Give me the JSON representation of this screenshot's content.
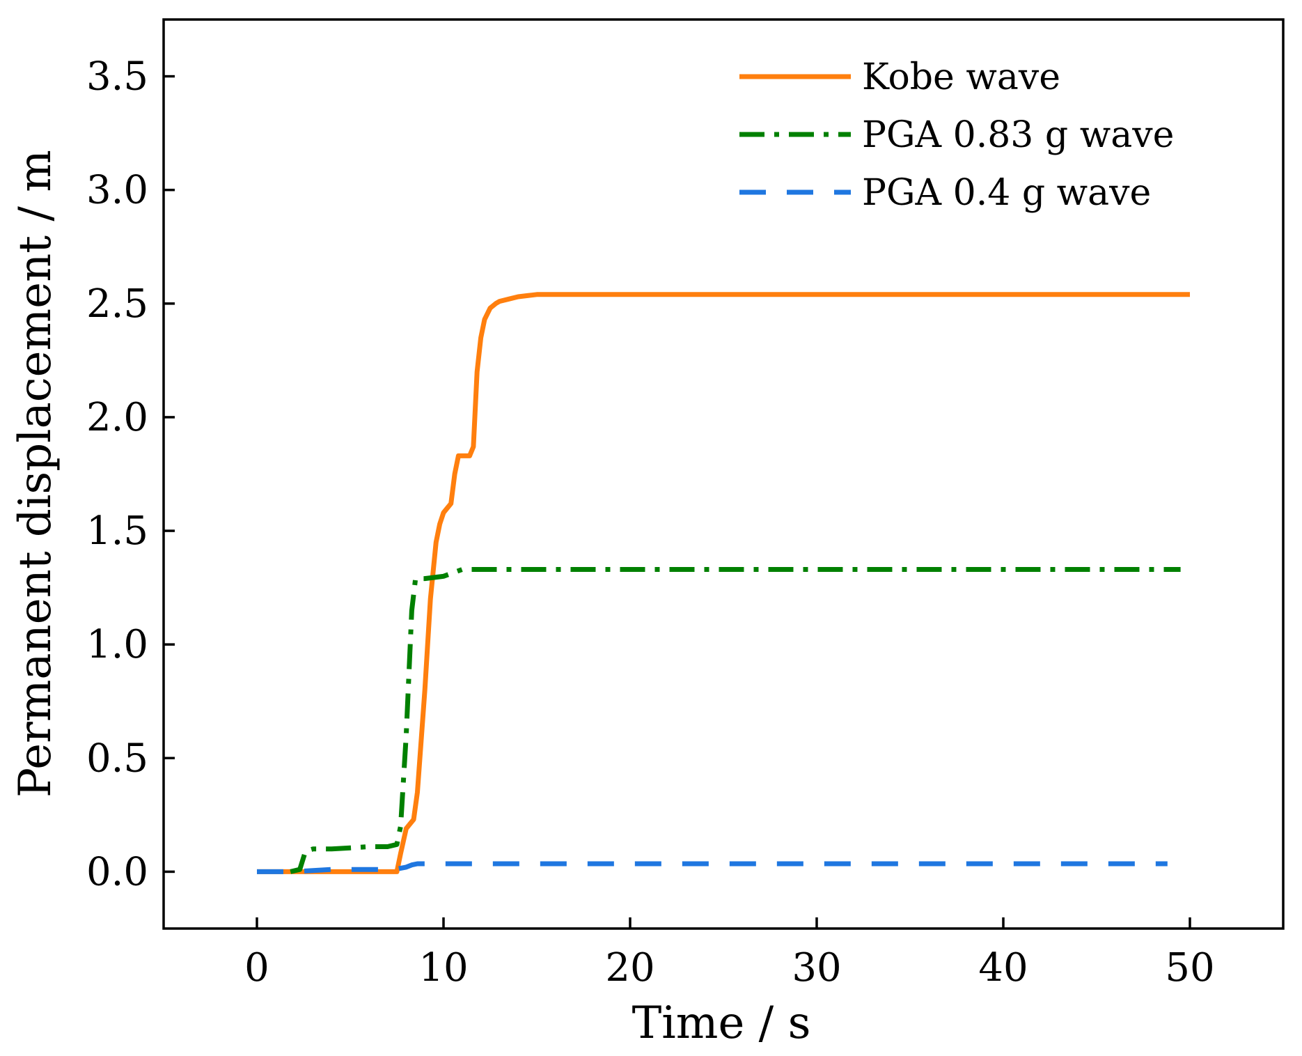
{
  "chart_data": {
    "type": "line",
    "title": "",
    "xlabel": "Time / s",
    "ylabel": "Permanent displacement / m",
    "xlim": [
      -5,
      55
    ],
    "ylim": [
      -0.25,
      3.75
    ],
    "xticks": [
      0,
      10,
      20,
      30,
      40,
      50
    ],
    "yticks": [
      0.0,
      0.5,
      1.0,
      1.5,
      2.0,
      2.5,
      3.0,
      3.5
    ],
    "xtick_labels": [
      "0",
      "10",
      "20",
      "30",
      "40",
      "50"
    ],
    "ytick_labels": [
      "0.0",
      "0.5",
      "1.0",
      "1.5",
      "2.0",
      "2.5",
      "3.0",
      "3.5"
    ],
    "grid": false,
    "legend_position": "top-right",
    "series": [
      {
        "name": "Kobe wave",
        "color": "#ff7f0e",
        "line_style": "solid",
        "x": [
          0,
          2,
          7.5,
          7.7,
          8.0,
          8.2,
          8.4,
          8.6,
          9.0,
          9.3,
          9.6,
          9.8,
          10.0,
          10.2,
          10.4,
          10.6,
          10.8,
          11.0,
          11.4,
          11.6,
          11.8,
          12.0,
          12.2,
          12.5,
          12.8,
          13.0,
          13.5,
          14.0,
          14.5,
          15.0,
          16.0,
          20.0,
          30.0,
          40.0,
          50.0
        ],
        "values": [
          0.0,
          0.0,
          0.0,
          0.08,
          0.19,
          0.21,
          0.23,
          0.35,
          0.8,
          1.2,
          1.45,
          1.53,
          1.58,
          1.6,
          1.62,
          1.75,
          1.83,
          1.83,
          1.83,
          1.87,
          2.2,
          2.35,
          2.43,
          2.48,
          2.5,
          2.51,
          2.52,
          2.53,
          2.535,
          2.54,
          2.54,
          2.54,
          2.54,
          2.54,
          2.54
        ]
      },
      {
        "name": "PGA 0.83 g wave",
        "color": "#008000",
        "line_style": "dashdot",
        "x": [
          1.8,
          2.3,
          2.6,
          3.0,
          4.0,
          5.0,
          6.0,
          7.0,
          7.5,
          7.7,
          8.0,
          8.3,
          8.5,
          8.7,
          9.0,
          10.0,
          11.0,
          12.0,
          15.0,
          20.0,
          30.0,
          40.0,
          49.5
        ],
        "values": [
          0.0,
          0.01,
          0.09,
          0.1,
          0.1,
          0.105,
          0.11,
          0.11,
          0.12,
          0.2,
          0.6,
          1.15,
          1.29,
          1.29,
          1.29,
          1.3,
          1.33,
          1.33,
          1.33,
          1.33,
          1.33,
          1.33,
          1.33
        ]
      },
      {
        "name": "PGA 0.4 g wave",
        "color": "#1f77e0",
        "line_style": "dashed",
        "x": [
          0,
          2,
          4,
          7.0,
          7.5,
          8.0,
          8.3,
          8.6,
          9.0,
          10.0,
          20.0,
          30.0,
          40.0,
          48.8
        ],
        "values": [
          0.0,
          0.0,
          0.01,
          0.01,
          0.012,
          0.02,
          0.03,
          0.035,
          0.035,
          0.035,
          0.035,
          0.035,
          0.035,
          0.035
        ]
      }
    ]
  }
}
